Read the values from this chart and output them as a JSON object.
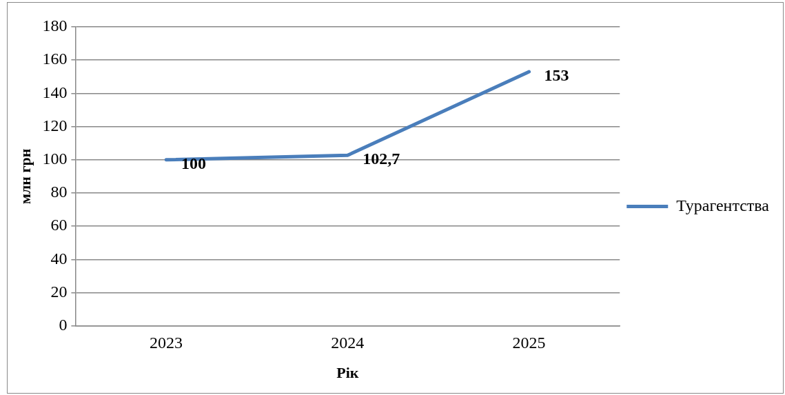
{
  "chart_data": {
    "type": "line",
    "xlabel": "Рік",
    "ylabel": "млн грн",
    "categories": [
      "2023",
      "2024",
      "2025"
    ],
    "series": [
      {
        "name": "Турагентства",
        "color": "#4a7ebb",
        "values": [
          100,
          102.7,
          153
        ],
        "value_labels": [
          "100",
          "102,7",
          "153"
        ]
      }
    ],
    "ylim": [
      0,
      180
    ],
    "yticks": [
      0,
      20,
      40,
      60,
      80,
      100,
      120,
      140,
      160,
      180
    ],
    "grid": "y",
    "legend": "right",
    "marker": "none",
    "line_style": "solid"
  }
}
